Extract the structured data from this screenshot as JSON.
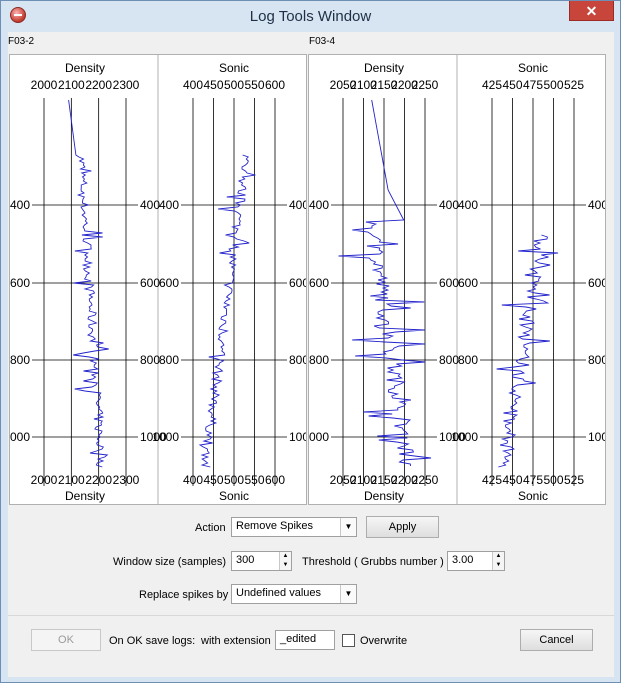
{
  "window": {
    "title": "Log Tools Window"
  },
  "wells": [
    {
      "name": "F03-2",
      "logs": [
        {
          "name": "Density",
          "ticks": [
            "2000",
            "2100",
            "2200",
            "2300"
          ]
        },
        {
          "name": "Sonic",
          "ticks": [
            "400",
            "450",
            "500",
            "550",
            "600"
          ]
        }
      ]
    },
    {
      "name": "F03-4",
      "logs": [
        {
          "name": "Density",
          "ticks": [
            "2050",
            "2100",
            "2150",
            "2200",
            "2250"
          ]
        },
        {
          "name": "Sonic",
          "ticks": [
            "425",
            "450",
            "475",
            "500",
            "525"
          ]
        }
      ]
    }
  ],
  "depth_ticks": [
    "400",
    "600",
    "800",
    "1000"
  ],
  "controls": {
    "action_label": "Action",
    "action_value": "Remove Spikes",
    "apply_label": "Apply",
    "window_size_label": "Window size (samples)",
    "window_size_value": "300",
    "threshold_label": "Threshold ( Grubbs number )",
    "threshold_value": "3.00",
    "replace_label": "Replace spikes by",
    "replace_value": "Undefined values"
  },
  "footer": {
    "ok_label": "OK",
    "save_label": "On OK save logs:",
    "extension_label": "with extension",
    "extension_value": "_edited",
    "overwrite_label": "Overwrite",
    "cancel_label": "Cancel"
  },
  "colors": {
    "curve": "#2222cc",
    "grid": "#000000",
    "titlebar": "#d7e4f2",
    "close": "#c7453a"
  }
}
